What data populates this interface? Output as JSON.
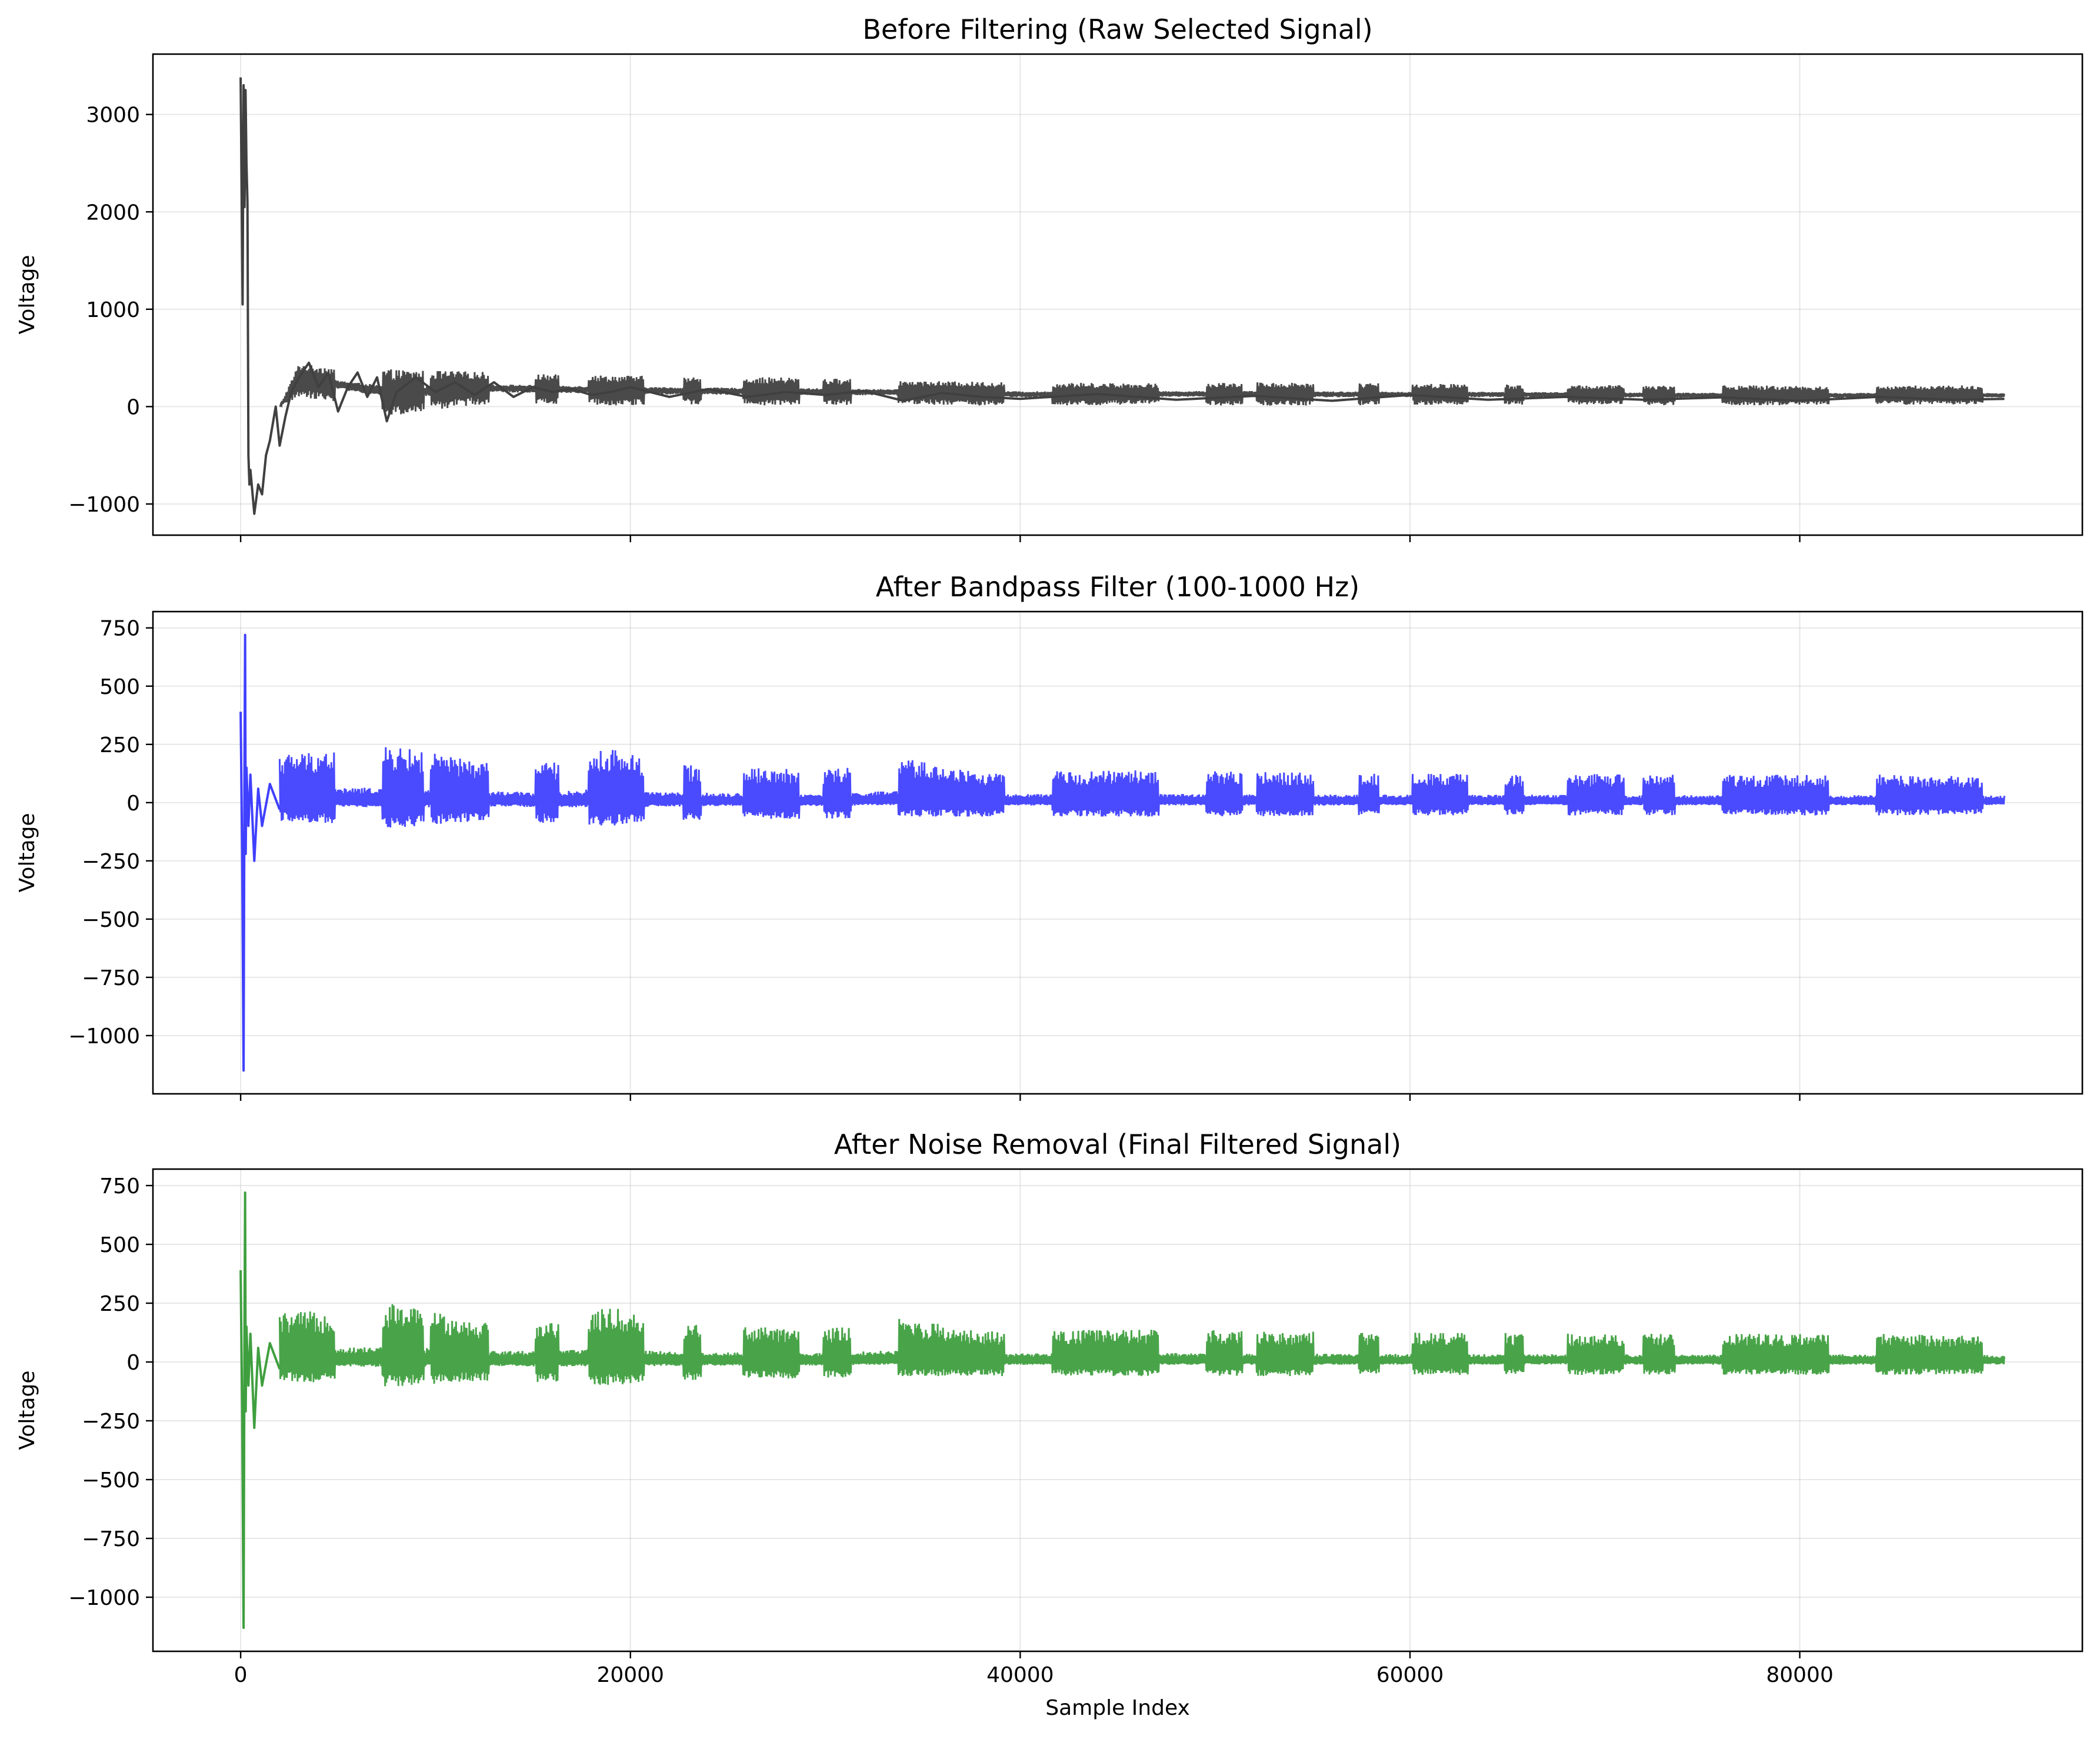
{
  "chart_data": [
    {
      "type": "line",
      "title": "Before Filtering (Raw Selected Signal)",
      "xlabel": "",
      "ylabel": "Voltage",
      "xlim": [
        -4500,
        94500
      ],
      "ylim": [
        -1320,
        3620
      ],
      "xticks": [
        0,
        20000,
        40000,
        60000,
        80000
      ],
      "xtick_labels": [],
      "yticks": [
        -1000,
        0,
        1000,
        2000,
        3000
      ],
      "ytick_labels": [
        "−1000",
        "0",
        "1000",
        "2000",
        "3000"
      ],
      "grid": true,
      "series": [
        {
          "color": "#404040",
          "x": [
            0,
            100,
            150,
            200,
            250,
            300,
            350,
            400,
            450,
            500,
            700,
            900,
            1100,
            1300,
            1500,
            1800,
            2000,
            2300,
            2600,
            3000,
            3500,
            4000,
            4500,
            5000,
            5500,
            6000,
            6500,
            7000,
            7500,
            8000,
            9000,
            10000,
            11000,
            12000,
            13000,
            14000,
            15000,
            16000,
            17000,
            18000,
            19000,
            20000,
            22000,
            24000,
            26000,
            28000,
            30000,
            32000,
            34000,
            36000,
            38000,
            40000,
            44000,
            48000,
            52000,
            56000,
            60000,
            64000,
            68000,
            72000,
            76000,
            80000,
            84000,
            88000,
            90500
          ],
          "y": [
            3380,
            1050,
            3300,
            2050,
            3250,
            2500,
            2100,
            -500,
            -800,
            -650,
            -1100,
            -800,
            -900,
            -500,
            -350,
            0,
            -400,
            -100,
            150,
            300,
            450,
            200,
            350,
            -50,
            200,
            350,
            100,
            300,
            -150,
            150,
            300,
            150,
            250,
            120,
            250,
            100,
            200,
            150,
            180,
            120,
            150,
            200,
            100,
            180,
            100,
            150,
            120,
            160,
            60,
            140,
            100,
            80,
            130,
            70,
            110,
            60,
            120,
            70,
            100,
            70,
            95,
            60,
            100,
            70,
            80
          ],
          "envelope": [
            {
              "x": 2000,
              "lo": 0,
              "hi": 0
            },
            {
              "x": 3000,
              "lo": 100,
              "hi": 450
            },
            {
              "x": 5000,
              "lo": 50,
              "hi": 400
            },
            {
              "x": 8000,
              "lo": -100,
              "hi": 380
            },
            {
              "x": 12000,
              "lo": 20,
              "hi": 360
            },
            {
              "x": 16000,
              "lo": 30,
              "hi": 330
            },
            {
              "x": 20000,
              "lo": 10,
              "hi": 320
            },
            {
              "x": 24000,
              "lo": 20,
              "hi": 300
            },
            {
              "x": 28000,
              "lo": 10,
              "hi": 300
            },
            {
              "x": 32000,
              "lo": 20,
              "hi": 280
            },
            {
              "x": 36000,
              "lo": 20,
              "hi": 260
            },
            {
              "x": 40000,
              "lo": 0,
              "hi": 250
            },
            {
              "x": 46000,
              "lo": 20,
              "hi": 240
            },
            {
              "x": 52000,
              "lo": 10,
              "hi": 250
            },
            {
              "x": 58000,
              "lo": 10,
              "hi": 240
            },
            {
              "x": 64000,
              "lo": 20,
              "hi": 230
            },
            {
              "x": 70000,
              "lo": 20,
              "hi": 220
            },
            {
              "x": 76000,
              "lo": 10,
              "hi": 220
            },
            {
              "x": 82000,
              "lo": 20,
              "hi": 210
            },
            {
              "x": 88000,
              "lo": 20,
              "hi": 220
            },
            {
              "x": 90500,
              "lo": 30,
              "hi": 200
            }
          ]
        }
      ]
    },
    {
      "type": "line",
      "title": "After Bandpass Filter (100-1000 Hz)",
      "xlabel": "",
      "ylabel": "Voltage",
      "xlim": [
        -4500,
        94500
      ],
      "ylim": [
        -1250,
        820
      ],
      "xticks": [
        0,
        20000,
        40000,
        60000,
        80000
      ],
      "xtick_labels": [],
      "yticks": [
        -1000,
        -750,
        -500,
        -250,
        0,
        250,
        500,
        750
      ],
      "ytick_labels": [
        "−1000",
        "−750",
        "−500",
        "−250",
        "0",
        "250",
        "500",
        "750"
      ],
      "grid": true,
      "series": [
        {
          "color": "#4040ff",
          "x": [
            0,
            80,
            150,
            200,
            230,
            260,
            300,
            400,
            500,
            700,
            900,
            1100,
            1500,
            2000
          ],
          "y": [
            390,
            -230,
            -1150,
            210,
            720,
            -220,
            150,
            -100,
            120,
            -250,
            60,
            -100,
            80,
            -30
          ],
          "envelope": [
            {
              "x": 2000,
              "lo": -80,
              "hi": 210
            },
            {
              "x": 5000,
              "lo": -90,
              "hi": 230
            },
            {
              "x": 8000,
              "lo": -110,
              "hi": 240
            },
            {
              "x": 12000,
              "lo": -80,
              "hi": 180
            },
            {
              "x": 16000,
              "lo": -90,
              "hi": 170
            },
            {
              "x": 19000,
              "lo": -100,
              "hi": 235
            },
            {
              "x": 22000,
              "lo": -80,
              "hi": 165
            },
            {
              "x": 26000,
              "lo": -70,
              "hi": 150
            },
            {
              "x": 30000,
              "lo": -70,
              "hi": 140
            },
            {
              "x": 34000,
              "lo": -60,
              "hi": 190
            },
            {
              "x": 38000,
              "lo": -60,
              "hi": 130
            },
            {
              "x": 42000,
              "lo": -60,
              "hi": 135
            },
            {
              "x": 48000,
              "lo": -60,
              "hi": 140
            },
            {
              "x": 54000,
              "lo": -60,
              "hi": 130
            },
            {
              "x": 60000,
              "lo": -55,
              "hi": 125
            },
            {
              "x": 66000,
              "lo": -55,
              "hi": 125
            },
            {
              "x": 72000,
              "lo": -55,
              "hi": 120
            },
            {
              "x": 78000,
              "lo": -55,
              "hi": 120
            },
            {
              "x": 84000,
              "lo": -55,
              "hi": 120
            },
            {
              "x": 90500,
              "lo": -50,
              "hi": 110
            }
          ]
        }
      ]
    },
    {
      "type": "line",
      "title": "After Noise Removal (Final Filtered Signal)",
      "xlabel": "Sample Index",
      "ylabel": "Voltage",
      "xlim": [
        -4500,
        94500
      ],
      "ylim": [
        -1230,
        820
      ],
      "xticks": [
        0,
        20000,
        40000,
        60000,
        80000
      ],
      "xtick_labels": [
        "0",
        "20000",
        "40000",
        "60000",
        "80000"
      ],
      "yticks": [
        -1000,
        -750,
        -500,
        -250,
        0,
        250,
        500,
        750
      ],
      "ytick_labels": [
        "−1000",
        "−750",
        "−500",
        "−250",
        "0",
        "250",
        "500",
        "750"
      ],
      "grid": true,
      "series": [
        {
          "color": "#3f9f3f",
          "x": [
            0,
            80,
            150,
            200,
            230,
            260,
            300,
            400,
            500,
            700,
            900,
            1100,
            1500,
            2000
          ],
          "y": [
            390,
            -220,
            -1130,
            200,
            720,
            -210,
            150,
            -100,
            120,
            -280,
            60,
            -100,
            80,
            -30
          ],
          "envelope": [
            {
              "x": 2000,
              "lo": -80,
              "hi": 210
            },
            {
              "x": 5000,
              "lo": -90,
              "hi": 220
            },
            {
              "x": 8000,
              "lo": -110,
              "hi": 250
            },
            {
              "x": 12000,
              "lo": -80,
              "hi": 180
            },
            {
              "x": 16000,
              "lo": -90,
              "hi": 175
            },
            {
              "x": 19000,
              "lo": -100,
              "hi": 235
            },
            {
              "x": 22000,
              "lo": -80,
              "hi": 165
            },
            {
              "x": 26000,
              "lo": -70,
              "hi": 150
            },
            {
              "x": 30000,
              "lo": -70,
              "hi": 140
            },
            {
              "x": 34000,
              "lo": -60,
              "hi": 190
            },
            {
              "x": 38000,
              "lo": -60,
              "hi": 130
            },
            {
              "x": 42000,
              "lo": -60,
              "hi": 135
            },
            {
              "x": 48000,
              "lo": -60,
              "hi": 140
            },
            {
              "x": 54000,
              "lo": -60,
              "hi": 130
            },
            {
              "x": 60000,
              "lo": -55,
              "hi": 125
            },
            {
              "x": 66000,
              "lo": -55,
              "hi": 125
            },
            {
              "x": 72000,
              "lo": -55,
              "hi": 120
            },
            {
              "x": 78000,
              "lo": -55,
              "hi": 120
            },
            {
              "x": 84000,
              "lo": -55,
              "hi": 120
            },
            {
              "x": 90500,
              "lo": -50,
              "hi": 110
            }
          ]
        }
      ]
    }
  ]
}
